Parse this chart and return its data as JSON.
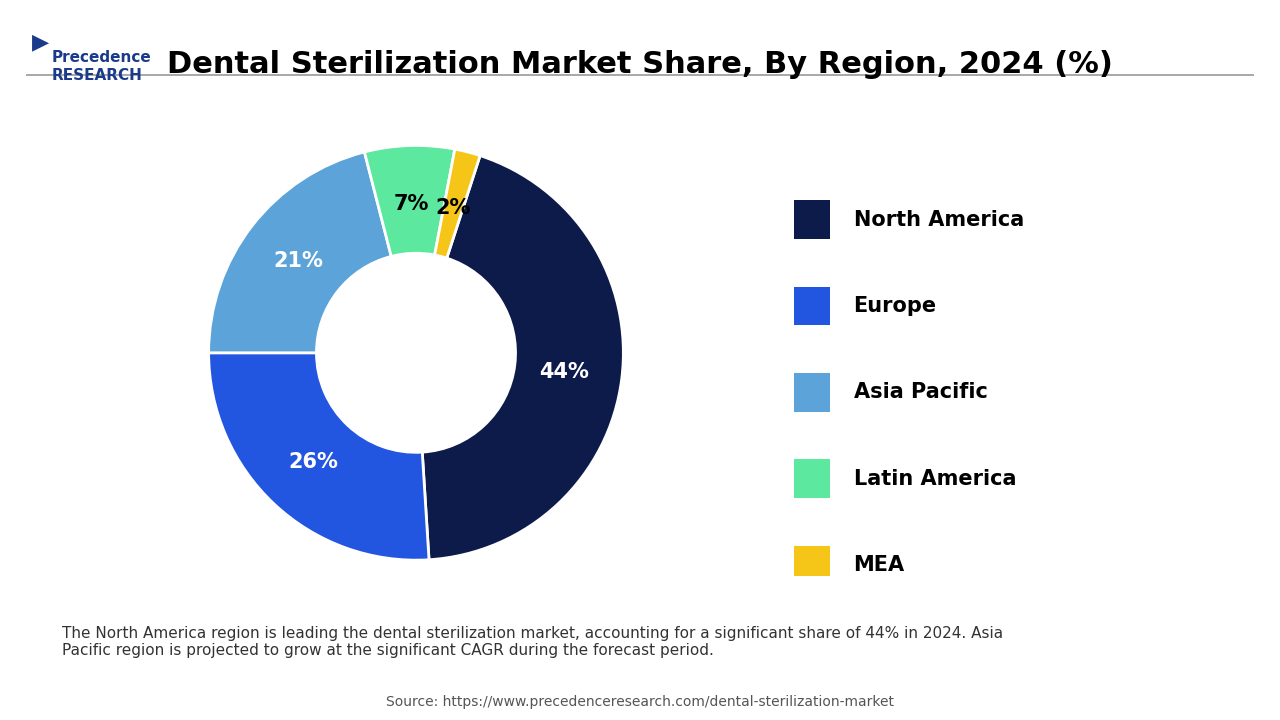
{
  "title": "Dental Sterilization Market Share, By Region, 2024 (%)",
  "labels": [
    "North America",
    "Europe",
    "Asia Pacific",
    "Latin America",
    "MEA"
  ],
  "values": [
    44,
    26,
    21,
    7,
    2
  ],
  "colors": [
    "#0d1b4b",
    "#2255e0",
    "#5ba3d9",
    "#5de8a0",
    "#f5c518"
  ],
  "pct_labels": [
    "44%",
    "26%",
    "21%",
    "7%",
    "2%"
  ],
  "legend_labels": [
    "North America",
    "Europe",
    "Asia Pacific",
    "Latin America",
    "MEA"
  ],
  "footnote": "The North America region is leading the dental sterilization market, accounting for a significant share of 44% in 2024. Asia\nPacific region is projected to grow at the significant CAGR during the forecast period.",
  "source": "Source: https://www.precedenceresearch.com/dental-sterilization-market",
  "bg_color": "#ffffff",
  "footnote_bg": "#ddeeff",
  "title_fontsize": 22,
  "legend_fontsize": 15,
  "pct_fontsize": 14
}
